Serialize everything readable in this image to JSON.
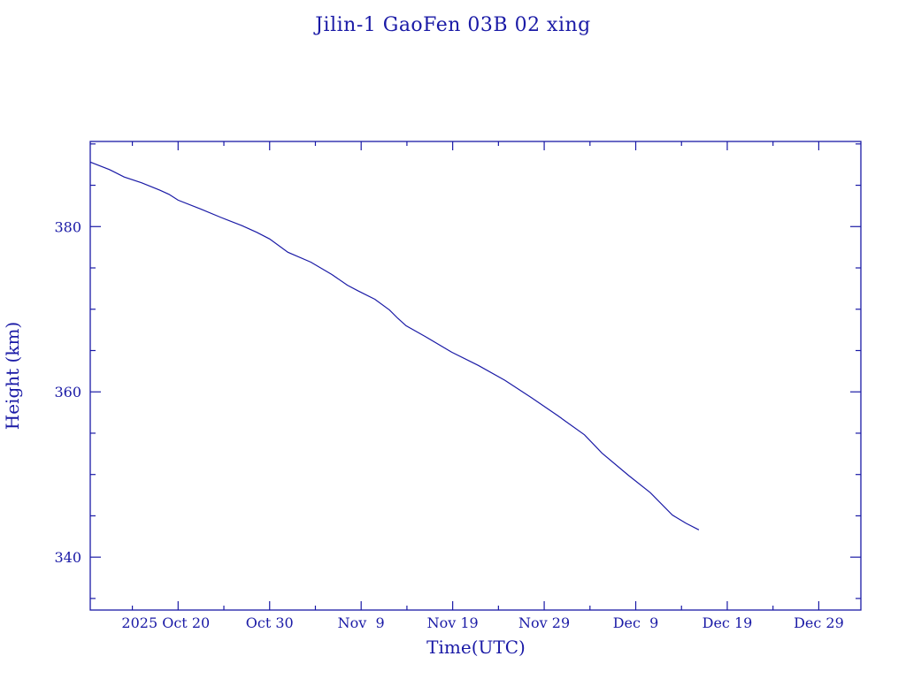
{
  "chart_data": {
    "type": "line",
    "title": "Jilin-1 GaoFen 03B 02 xing",
    "xlabel": "Time(UTC)",
    "ylabel": "Height (km)",
    "x_units": "days since 2025 Oct 20 00:00 UTC",
    "xlim": [
      -9.6,
      74.6
    ],
    "ylim": [
      333.6,
      390.3
    ],
    "x_ticks": [
      {
        "value": 0,
        "label": "2025 Oct 20"
      },
      {
        "value": 10,
        "label": "Oct 30"
      },
      {
        "value": 20,
        "label": "Nov  9"
      },
      {
        "value": 30,
        "label": "Nov 19"
      },
      {
        "value": 40,
        "label": "Nov 29"
      },
      {
        "value": 50,
        "label": "Dec  9"
      },
      {
        "value": 60,
        "label": "Dec 19"
      },
      {
        "value": 70,
        "label": "Dec 29"
      }
    ],
    "x_minor_step": 5,
    "y_ticks": [
      {
        "value": 340,
        "label": "340"
      },
      {
        "value": 360,
        "label": "360"
      },
      {
        "value": 380,
        "label": "380"
      }
    ],
    "y_minor_step": 5,
    "grid": false,
    "series": [
      {
        "name": "Height",
        "color": "#1a1aa6",
        "x": [
          -9.57,
          -7.5,
          -5.9,
          -4.0,
          -2.0,
          -1.0,
          0,
          2.5,
          4.7,
          7.0,
          8.6,
          10.0,
          12.0,
          14.5,
          16.8,
          18.5,
          19.7,
          21.5,
          23.1,
          24.0,
          24.9,
          27.0,
          29.9,
          32.8,
          35.7,
          38.6,
          41.5,
          44.4,
          46.3,
          49.2,
          51.6,
          54.0,
          55.5,
          56.9
        ],
        "y": [
          387.8,
          386.9,
          386.0,
          385.3,
          384.4,
          383.9,
          383.2,
          382.1,
          381.1,
          380.1,
          379.3,
          378.5,
          376.9,
          375.7,
          374.2,
          372.9,
          372.2,
          371.2,
          369.9,
          368.9,
          368.0,
          366.7,
          364.8,
          363.2,
          361.4,
          359.3,
          357.1,
          354.8,
          352.6,
          349.9,
          347.8,
          345.1,
          344.1,
          343.3
        ]
      }
    ]
  }
}
